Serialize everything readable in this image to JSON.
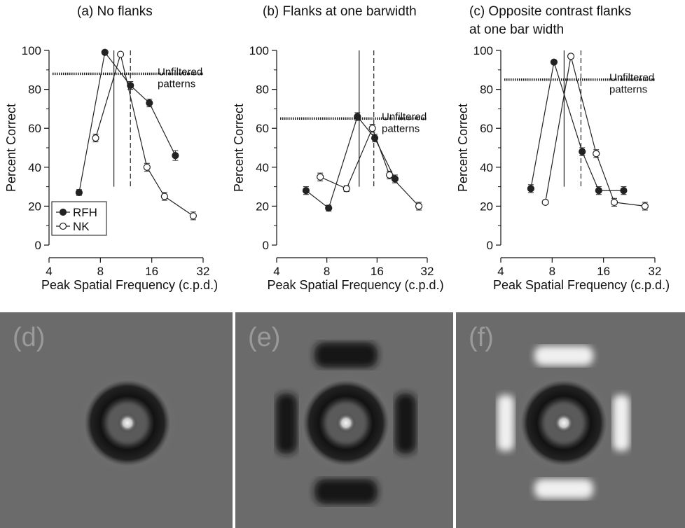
{
  "chart_data": [
    {
      "type": "line",
      "panel": "(a)",
      "title": "(a) No flanks",
      "xlabel": "Peak Spatial Frequency (c.p.d.)",
      "ylabel": "Percent Correct",
      "xscale": "log2",
      "xlim": [
        4,
        32
      ],
      "ylim": [
        0,
        100
      ],
      "xticks": [
        4,
        8,
        16,
        32
      ],
      "yticks": [
        0,
        20,
        40,
        60,
        80,
        100
      ],
      "reference": {
        "label": "Unfiltered patterns",
        "label_lines": [
          "Unfiltered",
          "patterns"
        ],
        "y": 88
      },
      "vlines": [
        {
          "x": 9.6,
          "style": "solid"
        },
        {
          "x": 12.0,
          "style": "dashed"
        }
      ],
      "legend": {
        "position": "lower-left",
        "entries": [
          "RFH",
          "NK"
        ]
      },
      "series": [
        {
          "name": "RFH",
          "marker": "filled-circle",
          "x": [
            6,
            8.5,
            12,
            15.5,
            22
          ],
          "y": [
            27,
            99,
            82,
            73,
            46
          ],
          "err": [
            1.5,
            0,
            2,
            2,
            2.5
          ]
        },
        {
          "name": "NK",
          "marker": "open-circle",
          "x": [
            7.5,
            10.5,
            15,
            19,
            28
          ],
          "y": [
            55,
            98,
            40,
            25,
            15
          ],
          "err": [
            2,
            0,
            2,
            2,
            2
          ]
        }
      ]
    },
    {
      "type": "line",
      "panel": "(b)",
      "title": "(b) Flanks at one barwidth",
      "xlabel": "Peak Spatial Frequency (c.p.d.)",
      "ylabel": "Percent Correct",
      "xscale": "log2",
      "xlim": [
        4,
        32
      ],
      "ylim": [
        0,
        100
      ],
      "xticks": [
        4,
        8,
        16,
        32
      ],
      "yticks": [
        0,
        20,
        40,
        60,
        80,
        100
      ],
      "reference": {
        "label": "Unfiltered patterns",
        "label_lines": [
          "Unfiltered",
          "patterns"
        ],
        "y": 65
      },
      "vlines": [
        {
          "x": 12.5,
          "style": "solid"
        },
        {
          "x": 15.3,
          "style": "dashed"
        }
      ],
      "series": [
        {
          "name": "RFH",
          "marker": "filled-circle",
          "x": [
            6,
            8.2,
            12.2,
            15.5,
            20.5
          ],
          "y": [
            28,
            19,
            66,
            55,
            34
          ],
          "err": [
            2,
            1.5,
            2,
            2,
            2
          ]
        },
        {
          "name": "NK",
          "marker": "open-circle",
          "x": [
            7.3,
            10.5,
            15,
            19,
            28.5
          ],
          "y": [
            35,
            29,
            60,
            36,
            20
          ],
          "err": [
            2,
            1.5,
            2,
            2,
            2
          ]
        }
      ]
    },
    {
      "type": "line",
      "panel": "(c)",
      "title": "(c) Opposite contrast flanks at one bar width",
      "title_lines": [
        "(c) Opposite contrast flanks",
        "at one bar width"
      ],
      "xlabel": "Peak Spatial Frequency (c.p.d.)",
      "ylabel": "Percent Correct",
      "xscale": "log2",
      "xlim": [
        4,
        32
      ],
      "ylim": [
        0,
        100
      ],
      "xticks": [
        4,
        8,
        16,
        32
      ],
      "yticks": [
        0,
        20,
        40,
        60,
        80,
        100
      ],
      "reference": {
        "label": "Unfiltered patterns",
        "label_lines": [
          "Unfiltered",
          "patterns"
        ],
        "y": 85
      },
      "vlines": [
        {
          "x": 9.4,
          "style": "solid"
        },
        {
          "x": 11.8,
          "style": "dashed"
        }
      ],
      "series": [
        {
          "name": "RFH",
          "marker": "filled-circle",
          "x": [
            6,
            8.2,
            12,
            15,
            21
          ],
          "y": [
            29,
            94,
            48,
            28,
            28
          ],
          "err": [
            2,
            0,
            2,
            2,
            2
          ]
        },
        {
          "name": "NK",
          "marker": "open-circle",
          "x": [
            7.3,
            10.3,
            14.5,
            18.5,
            28
          ],
          "y": [
            22,
            97,
            47,
            22,
            20
          ],
          "err": [
            0,
            0,
            2,
            2,
            2
          ]
        }
      ]
    }
  ],
  "images": [
    {
      "label": "(d)",
      "rings": 1,
      "flanks": "none"
    },
    {
      "label": "(e)",
      "rings": 1,
      "flanks": "dark"
    },
    {
      "label": "(f)",
      "rings": 1,
      "flanks": "light"
    }
  ]
}
